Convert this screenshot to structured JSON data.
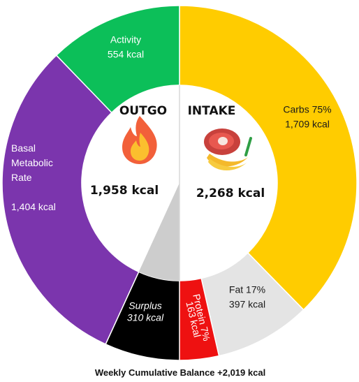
{
  "chart_data": {
    "type": "pie",
    "footer": "Weekly Cumulative Balance +2,019 kcal",
    "outgo": {
      "title": "OUTGO",
      "total_label": "1,958 kcal",
      "total": 1958,
      "icon": "flame-icon",
      "segments": [
        {
          "key": "activity",
          "lines": [
            "Activity",
            "554 kcal"
          ],
          "value": 554,
          "color": "#0cbf59",
          "text_color": "#ffffff"
        },
        {
          "key": "bmr",
          "lines": [
            "Basal",
            "Metabolic",
            "Rate",
            "",
            "1,404 kcal"
          ],
          "value": 1404,
          "color": "#7b35ad",
          "text_color": "#ffffff"
        }
      ]
    },
    "intake": {
      "title": "INTAKE",
      "total_label": "2,268 kcal",
      "total": 2268,
      "icon": "food-icon",
      "segments": [
        {
          "key": "carbs",
          "lines": [
            "Carbs 75%",
            "1,709 kcal"
          ],
          "value": 1709,
          "percent": 75,
          "color": "#ffcc00",
          "text_color": "#1a1a1a"
        },
        {
          "key": "fat",
          "lines": [
            "Fat 17%",
            "397 kcal"
          ],
          "value": 397,
          "percent": 17,
          "color": "#e4e4e4",
          "text_color": "#1a1a1a"
        },
        {
          "key": "protein",
          "lines": [
            "Protein 7%",
            "163 kcal"
          ],
          "value": 163,
          "percent": 7,
          "color": "#ee1111",
          "text_color": "#ffffff"
        }
      ]
    },
    "balance": {
      "key": "surplus",
      "lines": [
        "Surplus",
        "310 kcal"
      ],
      "value": 310,
      "color": "#000000",
      "text_color": "#ffffff",
      "wedge_color": "#c8c8c8"
    }
  }
}
